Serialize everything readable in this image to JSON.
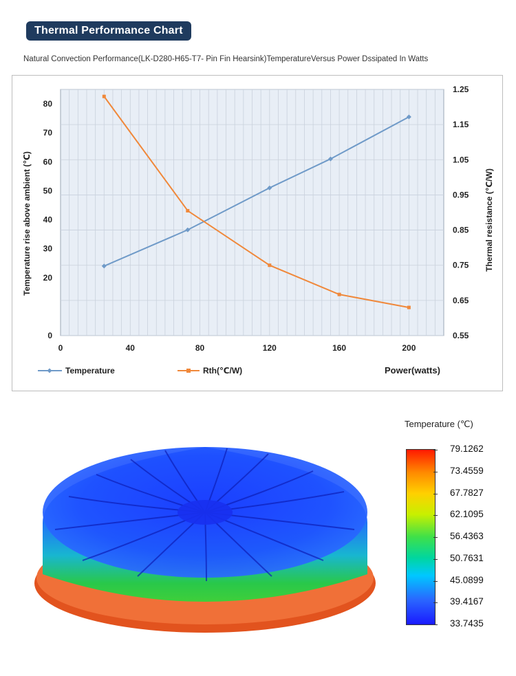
{
  "header": {
    "title": "Thermal Performance Chart",
    "subtitle": "Natural Convection Performance(LK-D280-H65-T7- Pin Fin  Hearsink)TemperatureVersus Power Dssipated In Watts"
  },
  "chart_data": {
    "type": "line",
    "x": [
      25,
      73,
      120,
      155,
      200
    ],
    "x_rth": [
      25,
      73,
      120,
      160,
      200
    ],
    "xlim": [
      0,
      220
    ],
    "x_ticks": [
      "0",
      "40",
      "80",
      "120",
      "160",
      "200"
    ],
    "y_ticks_left": [
      "0",
      "20",
      "30",
      "40",
      "50",
      "60",
      "70",
      "80"
    ],
    "y_ticks_right": [
      "0.55",
      "0.65",
      "0.75",
      "0.85",
      "0.95",
      "1.05",
      "1.15",
      "1.25"
    ],
    "ylim_left": [
      0,
      85
    ],
    "ylim_right": [
      0.55,
      1.25
    ],
    "ylabel_left": "Temperature rise above ambient (℃)",
    "ylabel_right": "Thermal resistance (℃/W)",
    "xlabel": "Power(watts)",
    "series": [
      {
        "name": "Temperature",
        "axis": "left",
        "color": "#6f9ac8",
        "values": [
          24,
          36.5,
          51,
          61,
          75.5
        ]
      },
      {
        "name": "Rth(℃/W)",
        "axis": "right",
        "color": "#f0883a",
        "values": [
          1.23,
          0.905,
          0.75,
          0.667,
          0.63
        ]
      }
    ],
    "legend": [
      "Temperature",
      "Rth(℃/W)"
    ]
  },
  "colorbar": {
    "title": "Temperature (℃)",
    "labels": [
      "79.1262",
      "73.4559",
      "67.7827",
      "62.1095",
      "56.4363",
      "50.7631",
      "45.0899",
      "39.4167",
      "33.7435"
    ]
  },
  "colors": {
    "badge": "#1f3b5e",
    "grid_bg": "#e8eef6"
  }
}
